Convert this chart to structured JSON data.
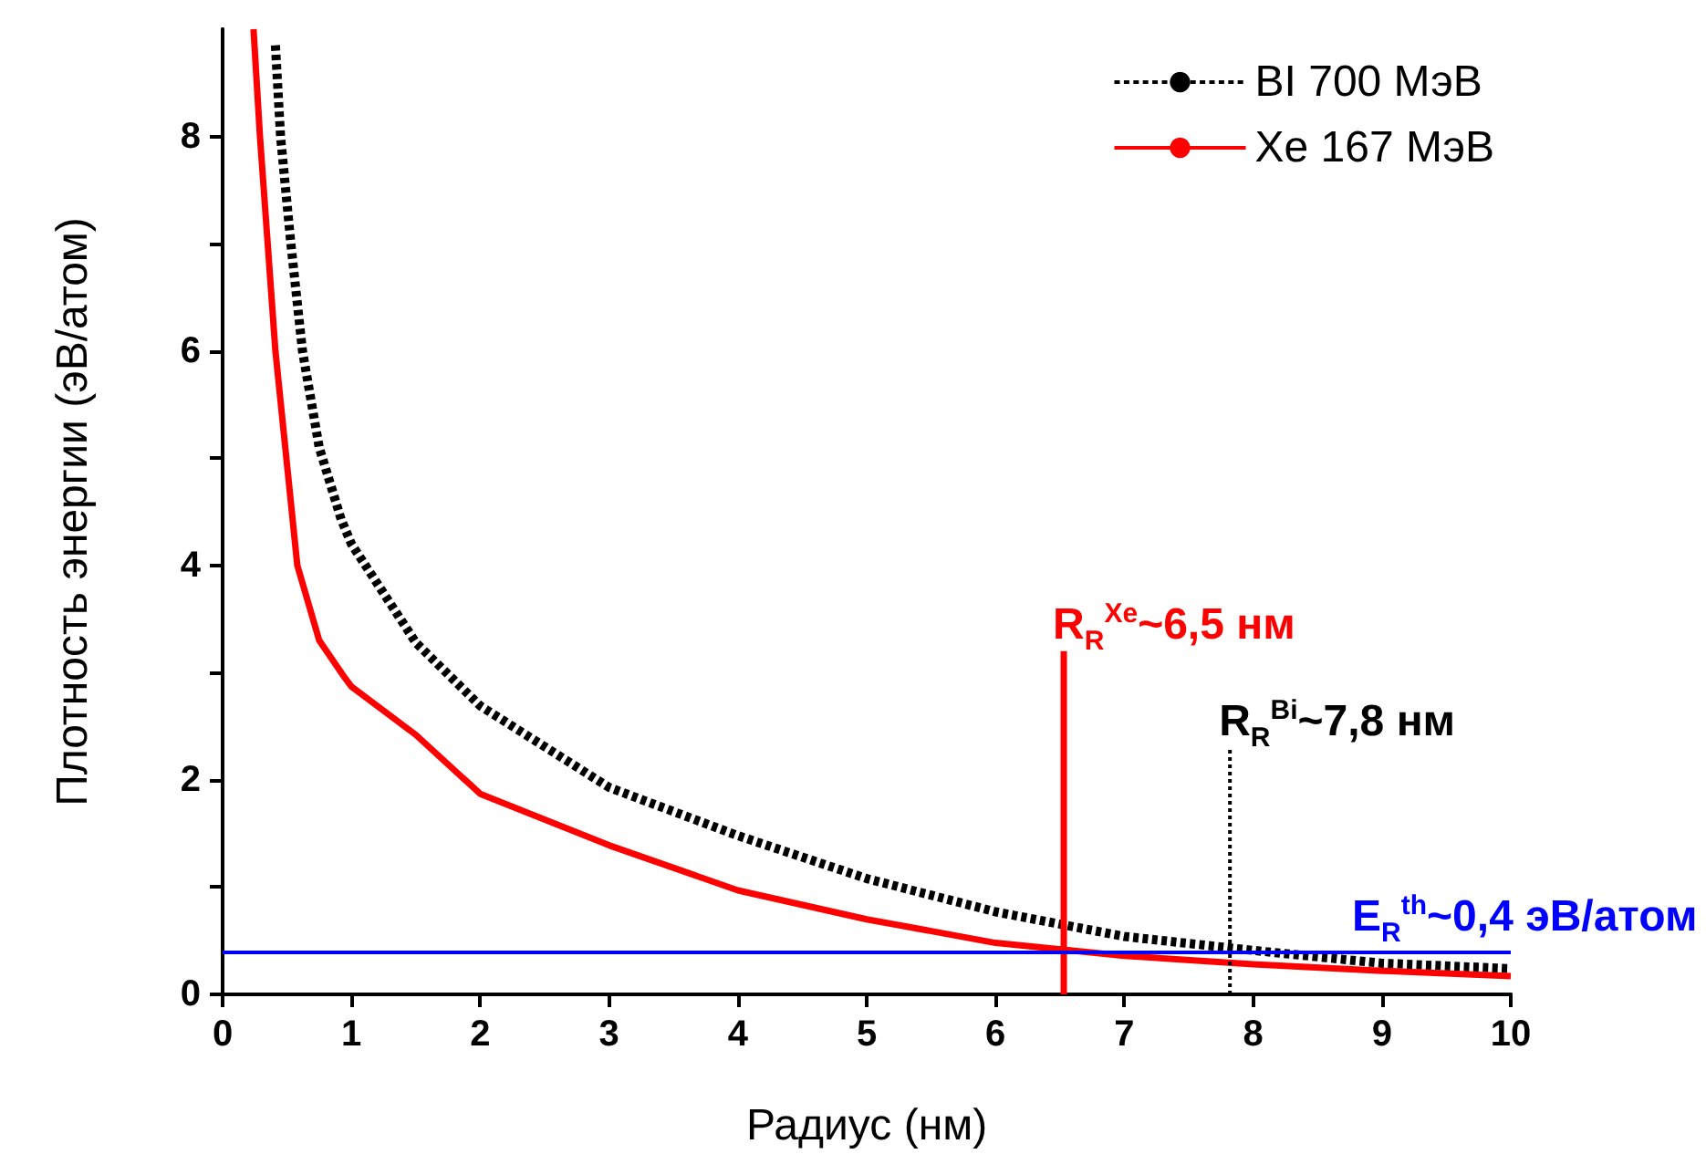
{
  "chart_data": {
    "type": "line",
    "xlabel": "Радиус (нм)",
    "ylabel": "Плотность энергии (эВ/атом)",
    "xlim": [
      0,
      10
    ],
    "ylim": [
      0,
      9
    ],
    "xticks": [
      0,
      1,
      2,
      3,
      4,
      5,
      6,
      7,
      8,
      9,
      10
    ],
    "yticks": [
      0,
      {
        "value": 1,
        "label": null
      },
      2,
      {
        "value": 3,
        "label": null
      },
      4,
      {
        "value": 5,
        "label": null
      },
      6,
      {
        "value": 7,
        "label": null
      },
      8
    ],
    "legend": "top right",
    "marker": "none",
    "grid": false,
    "series": [
      {
        "name": "BI 700 МэВ",
        "color": "#000000",
        "line_style": "dashed",
        "x": [
          0.41,
          0.45,
          0.53,
          0.62,
          0.75,
          0.92,
          1.0,
          1.5,
          2,
          3,
          4,
          5,
          6,
          7,
          8,
          9,
          10
        ],
        "values": [
          8.85,
          8.0,
          7.0,
          6.0,
          5.1,
          4.43,
          4.2,
          3.28,
          2.69,
          1.93,
          1.48,
          1.08,
          0.77,
          0.54,
          0.41,
          0.29,
          0.24
        ]
      },
      {
        "name": "Xe 167 МэВ",
        "color": "#ff0000",
        "line_style": "solid",
        "x": [
          0.24,
          0.29,
          0.41,
          0.58,
          0.75,
          0.95,
          1.0,
          1.5,
          2,
          3,
          4,
          5,
          6,
          7,
          8,
          9,
          10
        ],
        "values": [
          9.0,
          8.0,
          6.0,
          4.0,
          3.3,
          2.95,
          2.87,
          2.42,
          1.87,
          1.39,
          0.97,
          0.7,
          0.48,
          0.36,
          0.28,
          0.22,
          0.17
        ]
      },
      {
        "color": "#ff0000",
        "line_style": "solid",
        "x": [
          6.53,
          6.53
        ],
        "values": [
          0,
          3.2
        ]
      },
      {
        "color": "#000000",
        "line_style": "dotted",
        "x": [
          7.82,
          7.82
        ],
        "values": [
          0,
          2.3
        ]
      }
    ],
    "ref_lines": [
      {
        "axis": "y",
        "value": 0.4,
        "label": "E$_{R}$$^{th}$~0,4 эВ/атом",
        "color": "#0000ff"
      }
    ],
    "annotations": [
      {
        "text": "R$_{R}$$^{Xe}$~6,5 нм",
        "x": 6.53,
        "y": 3.2
      },
      {
        "text": "R$_{R}$$^{Bi}$~7,8 нм",
        "x": 7.82,
        "y": 2.3
      }
    ]
  }
}
